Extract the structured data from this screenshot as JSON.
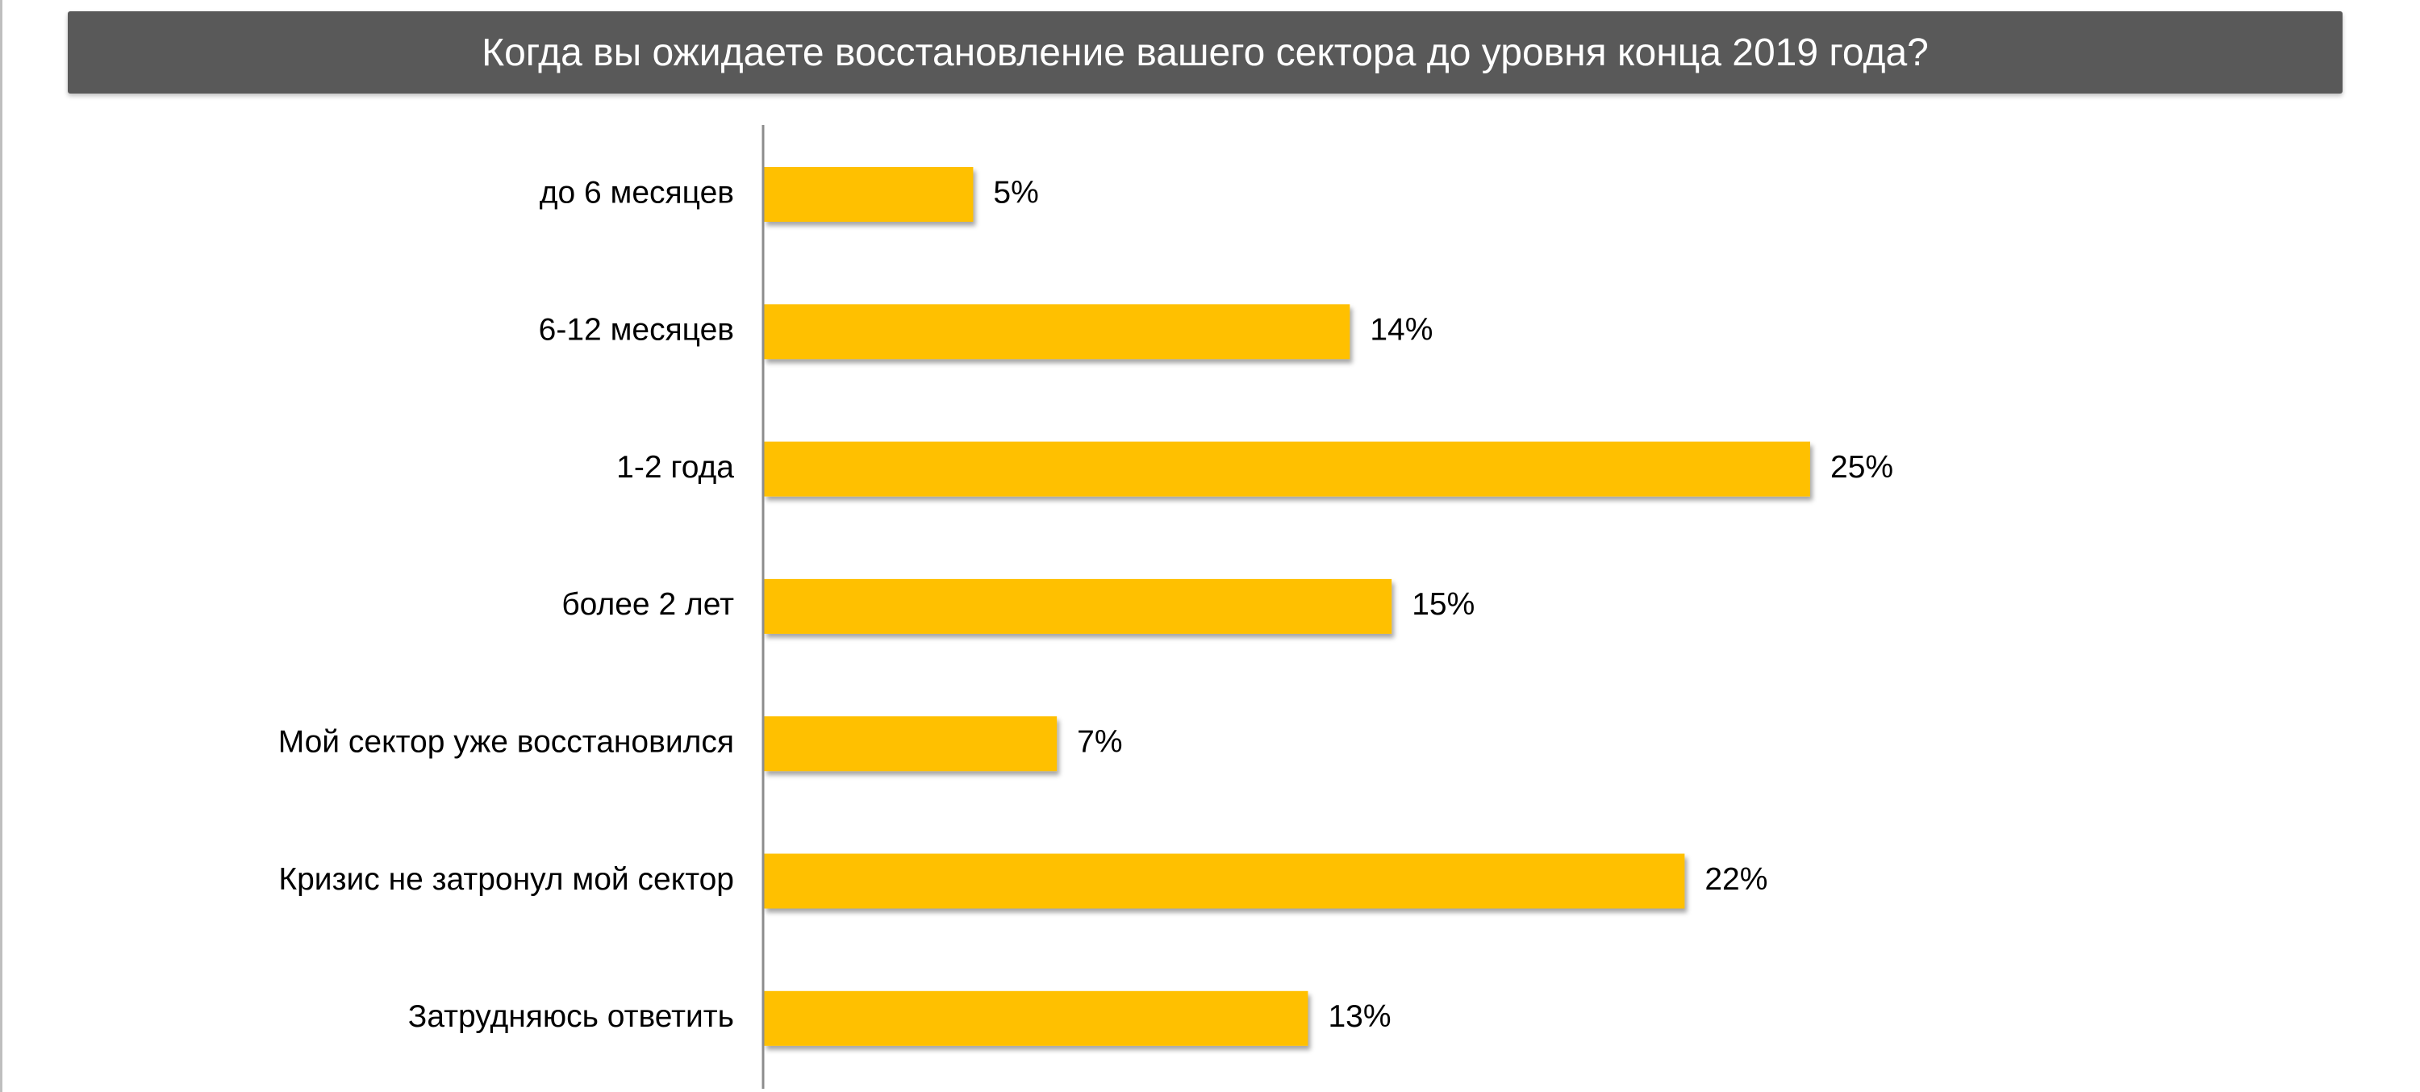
{
  "header": {
    "title": "Когда вы ожидаете восстановление вашего сектора до уровня конца 2019 года?"
  },
  "colors": {
    "title_background": "#595959",
    "bar": "#FFC000",
    "axis": "#8c8c8c"
  },
  "chart_data": {
    "type": "bar",
    "orientation": "horizontal",
    "title": "Когда вы ожидаете восстановление вашего сектора до уровня конца 2019 года?",
    "categories": [
      "до 6 месяцев",
      "6-12 месяцев",
      "1-2 года",
      "более 2 лет",
      "Мой сектор уже восстановился",
      "Кризис не затронул мой сектор",
      "Затрудняюсь ответить"
    ],
    "values": [
      5,
      14,
      25,
      15,
      7,
      22,
      13
    ],
    "value_labels": [
      "5%",
      "14%",
      "25%",
      "15%",
      "7%",
      "22%",
      "13%"
    ],
    "unit": "%",
    "xlim": [
      0,
      25
    ],
    "grid": false,
    "legend": "none"
  }
}
